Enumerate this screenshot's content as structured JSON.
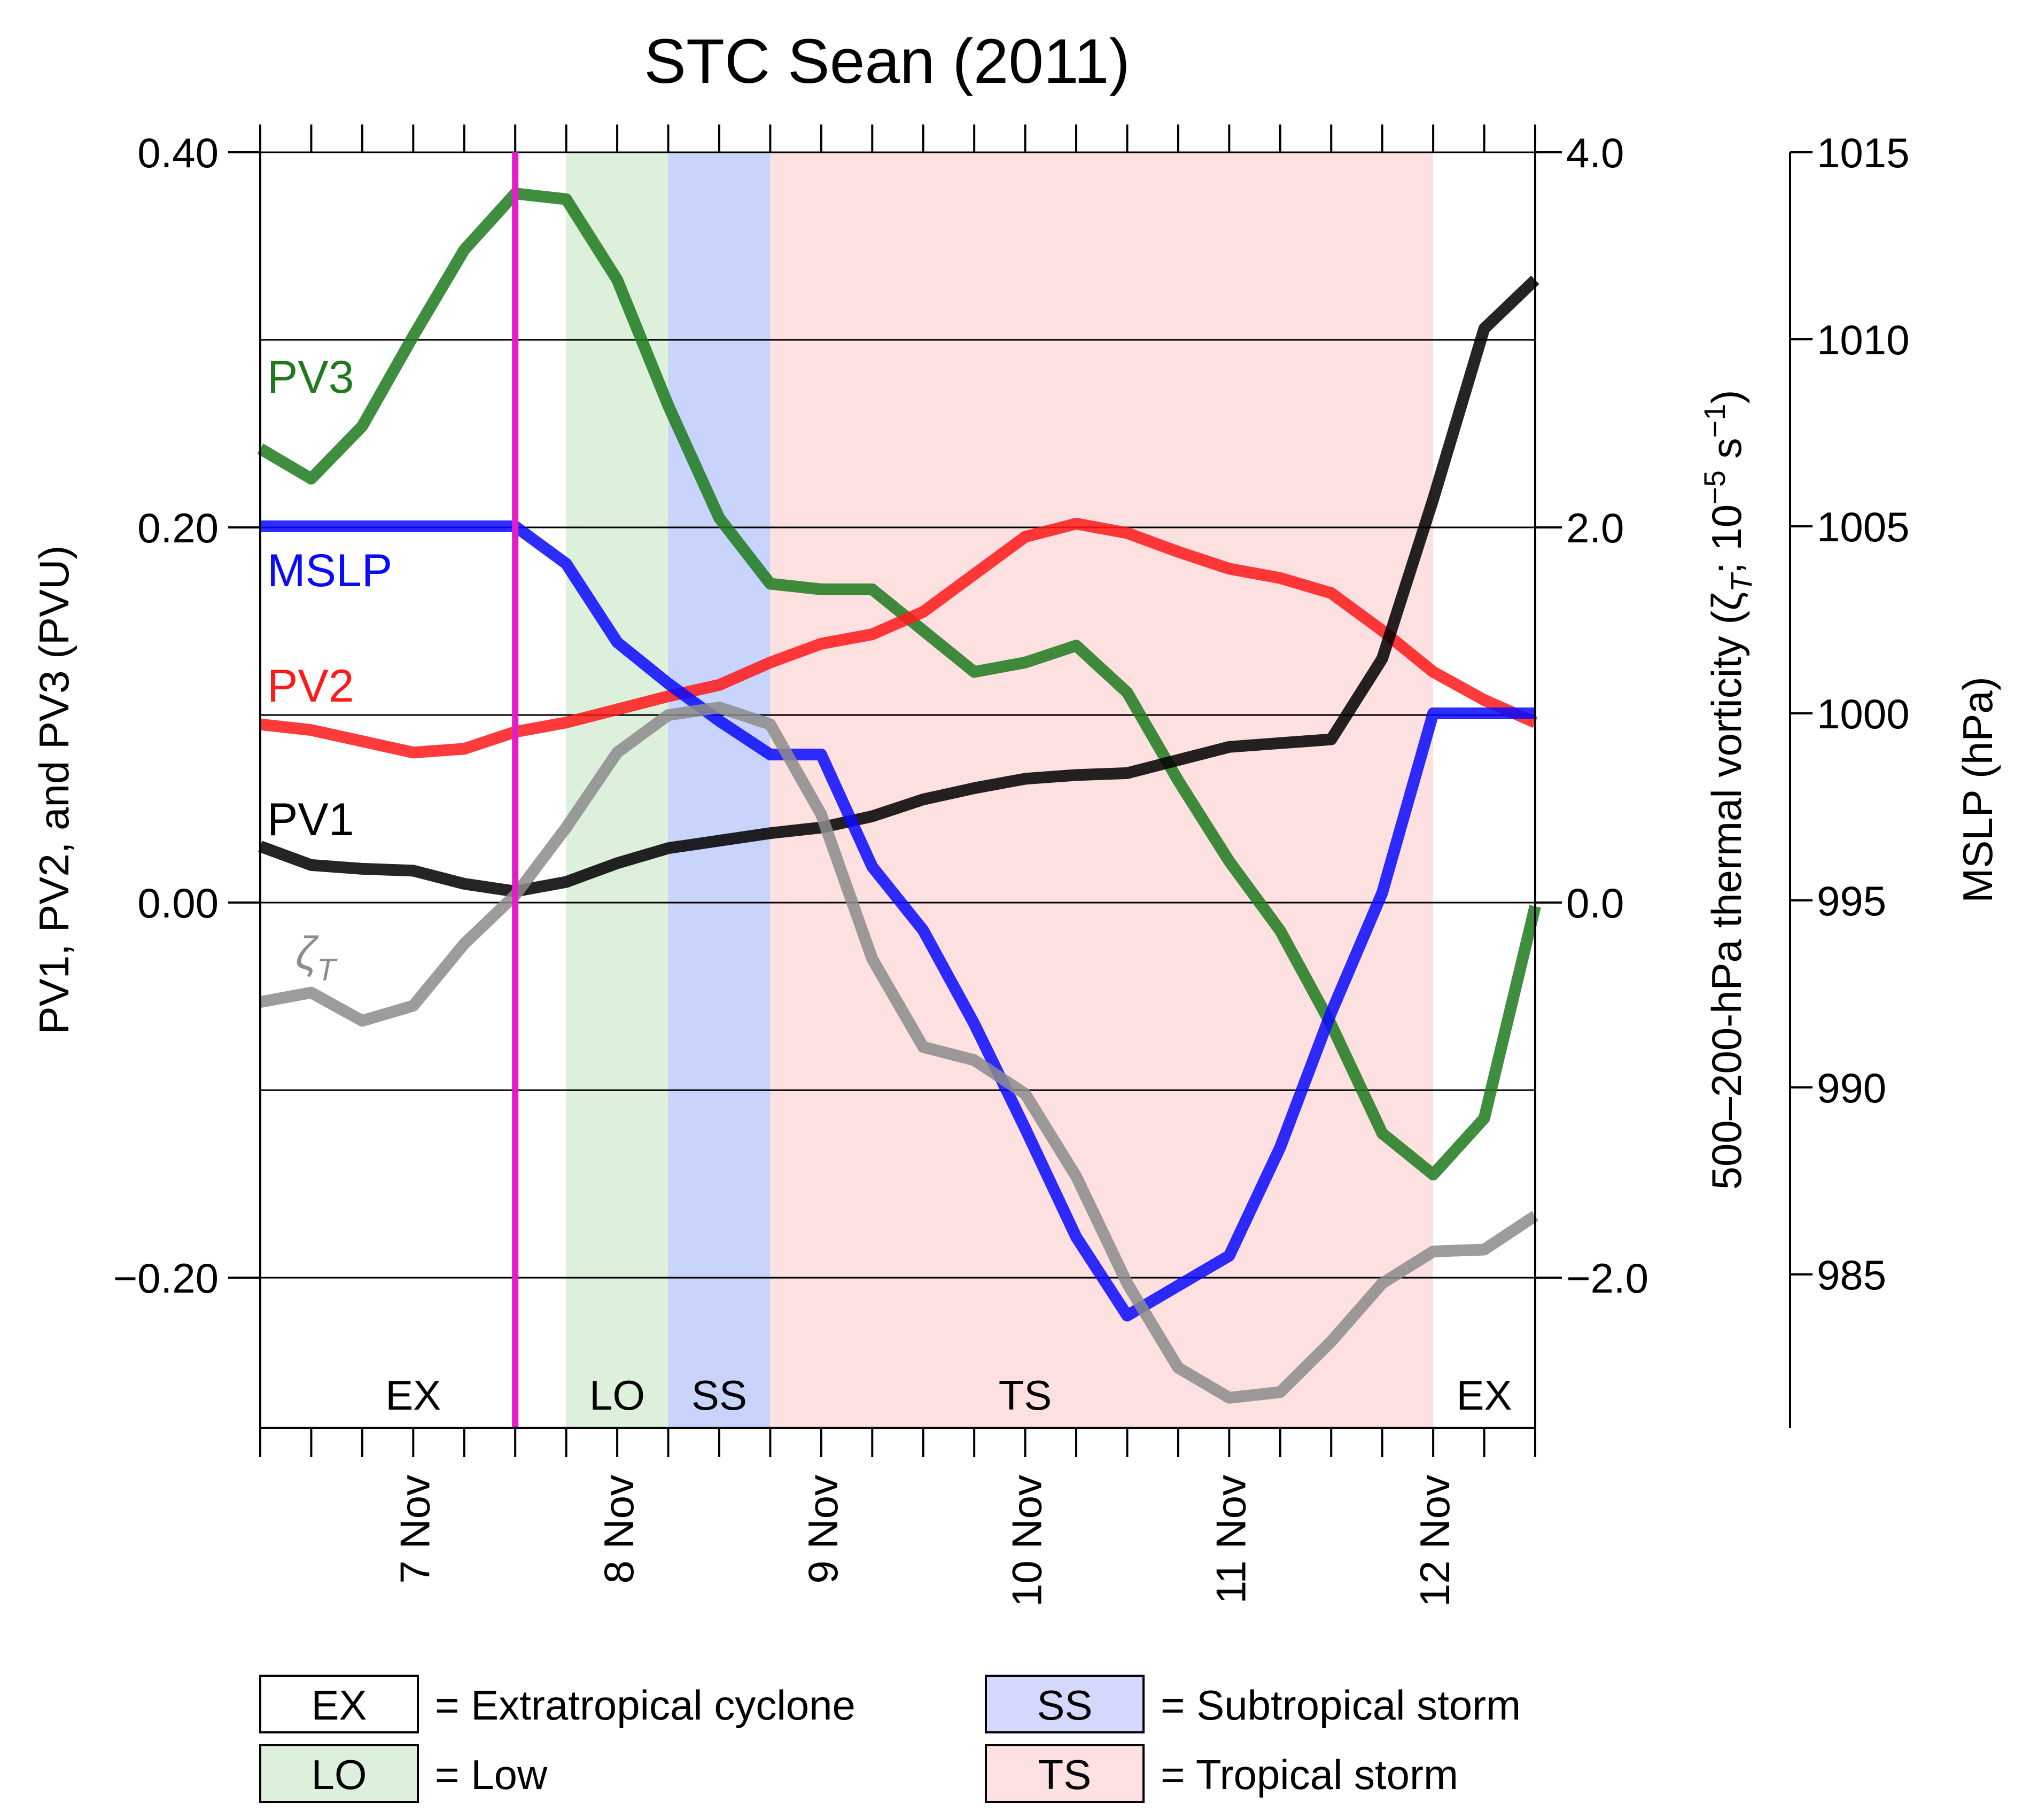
{
  "chart_data": {
    "type": "line",
    "title": "STC Sean (2011)",
    "ylabel_left": "PV1, PV2, and PV3 (PVU)",
    "ylabel_right_inner": "500–200-hPa thermal vorticity (ζ",
    "ylabel_right_inner_sub": "T",
    "ylabel_right_inner_mid": "; 10",
    "ylabel_right_inner_exp1": "−5",
    "ylabel_right_inner_s": " s",
    "ylabel_right_inner_exp2": "−1",
    "ylabel_right_inner_close": ")",
    "ylabel_right_outer": "MSLP (hPa)",
    "x_range_days": [
      6.25,
      12.5
    ],
    "ylim_left": [
      -0.28,
      0.4
    ],
    "ylim_middle": [
      -2.8,
      4.0
    ],
    "ylim_right": [
      980.9,
      1015
    ],
    "x_ticks": [
      {
        "x": 7,
        "label": "7 Nov"
      },
      {
        "x": 8,
        "label": "8 Nov"
      },
      {
        "x": 9,
        "label": "9 Nov"
      },
      {
        "x": 10,
        "label": "10 Nov"
      },
      {
        "x": 11,
        "label": "11 Nov"
      },
      {
        "x": 12,
        "label": "12 Nov"
      }
    ],
    "left_ticks": [
      {
        "v": 0.4,
        "label": "0.40"
      },
      {
        "v": 0.2,
        "label": "0.20"
      },
      {
        "v": 0.0,
        "label": "0.00"
      },
      {
        "v": -0.2,
        "label": "−0.20"
      }
    ],
    "middle_ticks": [
      {
        "v": 4.0,
        "label": "4.0"
      },
      {
        "v": 2.0,
        "label": "2.0"
      },
      {
        "v": 0.0,
        "label": "0.0"
      },
      {
        "v": -2.0,
        "label": "−2.0"
      }
    ],
    "right_ticks": [
      {
        "v": 1015,
        "label": "1015"
      },
      {
        "v": 1010,
        "label": "1010"
      },
      {
        "v": 1005,
        "label": "1005"
      },
      {
        "v": 1000,
        "label": "1000"
      },
      {
        "v": 995,
        "label": "995"
      },
      {
        "v": 990,
        "label": "990"
      },
      {
        "v": 985,
        "label": "985"
      }
    ],
    "gridlines_left": [
      0.4,
      0.3,
      0.2,
      0.1,
      0.0,
      -0.1,
      -0.2
    ],
    "vertical_marker_x": 7.5,
    "phases": [
      {
        "code": "EX",
        "start": 6.25,
        "end": 7.5,
        "color": "#ffffff"
      },
      {
        "code": "LO",
        "start": 7.75,
        "end": 8.25,
        "color": "#dcf0dc"
      },
      {
        "code": "SS",
        "start": 8.25,
        "end": 8.75,
        "color": "#c8d4fc"
      },
      {
        "code": "TS",
        "start": 8.75,
        "end": 12.0,
        "color": "#fde0e0"
      },
      {
        "code": "EX",
        "start": 12.0,
        "end": 12.5,
        "color": "#ffffff"
      }
    ],
    "x": [
      6.25,
      6.5,
      6.75,
      7.0,
      7.25,
      7.5,
      7.75,
      8.0,
      8.25,
      8.5,
      8.75,
      9.0,
      9.25,
      9.5,
      9.75,
      10.0,
      10.25,
      10.5,
      10.75,
      11.0,
      11.25,
      11.5,
      11.75,
      12.0,
      12.25,
      12.5
    ],
    "series": [
      {
        "name": "PV3",
        "label": "PV3",
        "axis": "left",
        "color": "#1f7a1f",
        "values": [
          0.242,
          0.226,
          0.254,
          0.302,
          0.348,
          0.378,
          0.375,
          0.332,
          0.265,
          0.205,
          0.17,
          0.167,
          0.167,
          0.145,
          0.123,
          0.128,
          0.137,
          0.112,
          0.065,
          0.022,
          -0.015,
          -0.065,
          -0.123,
          -0.145,
          -0.115,
          -0.002
        ]
      },
      {
        "name": "PV2",
        "label": "PV2",
        "axis": "left",
        "color": "#ff1a1a",
        "values": [
          0.095,
          0.092,
          0.086,
          0.08,
          0.082,
          0.091,
          0.096,
          0.103,
          0.11,
          0.116,
          0.128,
          0.138,
          0.143,
          0.155,
          0.175,
          0.195,
          0.202,
          0.197,
          0.187,
          0.178,
          0.173,
          0.165,
          0.145,
          0.123,
          0.108,
          0.096
        ]
      },
      {
        "name": "PV1",
        "label": "PV1",
        "axis": "left",
        "color": "#000000",
        "values": [
          0.03,
          0.02,
          0.018,
          0.017,
          0.01,
          0.006,
          0.011,
          0.021,
          0.029,
          0.033,
          0.037,
          0.04,
          0.046,
          0.055,
          0.061,
          0.066,
          0.068,
          0.069,
          0.076,
          0.083,
          0.085,
          0.087,
          0.13,
          0.215,
          0.306,
          0.332
        ]
      },
      {
        "name": "MSLP",
        "label": "MSLP",
        "axis": "right",
        "color": "#0a0aff",
        "values": [
          1005,
          1005,
          1005,
          1005,
          1005,
          1005,
          1004,
          1001.9,
          1000.8,
          999.8,
          998.9,
          998.9,
          995.9,
          994.2,
          991.7,
          988.9,
          986.0,
          983.9,
          984.7,
          985.5,
          988.4,
          992.0,
          995.2,
          1000.0,
          1000.0,
          1000.0
        ]
      },
      {
        "name": "zeta_T",
        "label": "ζ",
        "label_sub": "T",
        "axis": "middle",
        "color": "#8c8c8c",
        "values": [
          -0.53,
          -0.48,
          -0.63,
          -0.55,
          -0.22,
          0.04,
          0.4,
          0.8,
          1.0,
          1.04,
          0.95,
          0.47,
          -0.3,
          -0.77,
          -0.84,
          -1.02,
          -1.46,
          -2.03,
          -2.48,
          -2.64,
          -2.61,
          -2.34,
          -2.03,
          -1.86,
          -1.85,
          -1.67
        ]
      }
    ],
    "legend": [
      {
        "code": "EX",
        "text": "= Extratropical cyclone",
        "color": "#ffffff"
      },
      {
        "code": "SS",
        "text": "= Subtropical storm",
        "color": "#d4d8fc"
      },
      {
        "code": "LO",
        "text": "= Low",
        "color": "#dcf0dc"
      },
      {
        "code": "TS",
        "text": "= Tropical storm",
        "color": "#fde0e0"
      }
    ]
  }
}
